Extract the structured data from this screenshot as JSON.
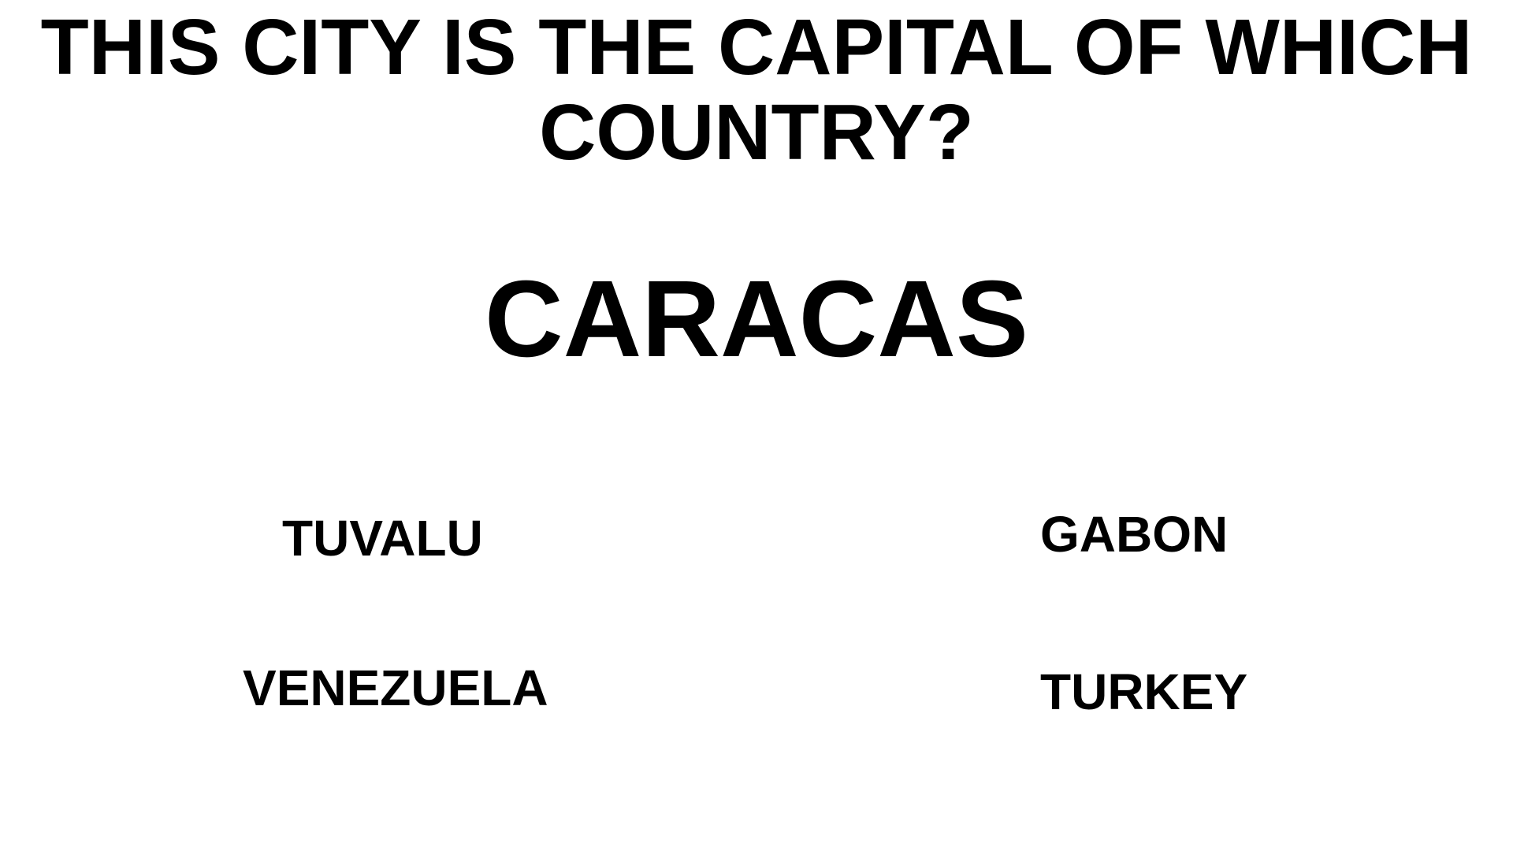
{
  "question": "THIS CITY IS THE CAPITAL OF WHICH COUNTRY?",
  "city": "CARACAS",
  "answers": [
    "TUVALU",
    "GABON",
    "VENEZUELA",
    "TURKEY"
  ],
  "colors": {
    "background": "#ffffff",
    "text": "#000000"
  }
}
